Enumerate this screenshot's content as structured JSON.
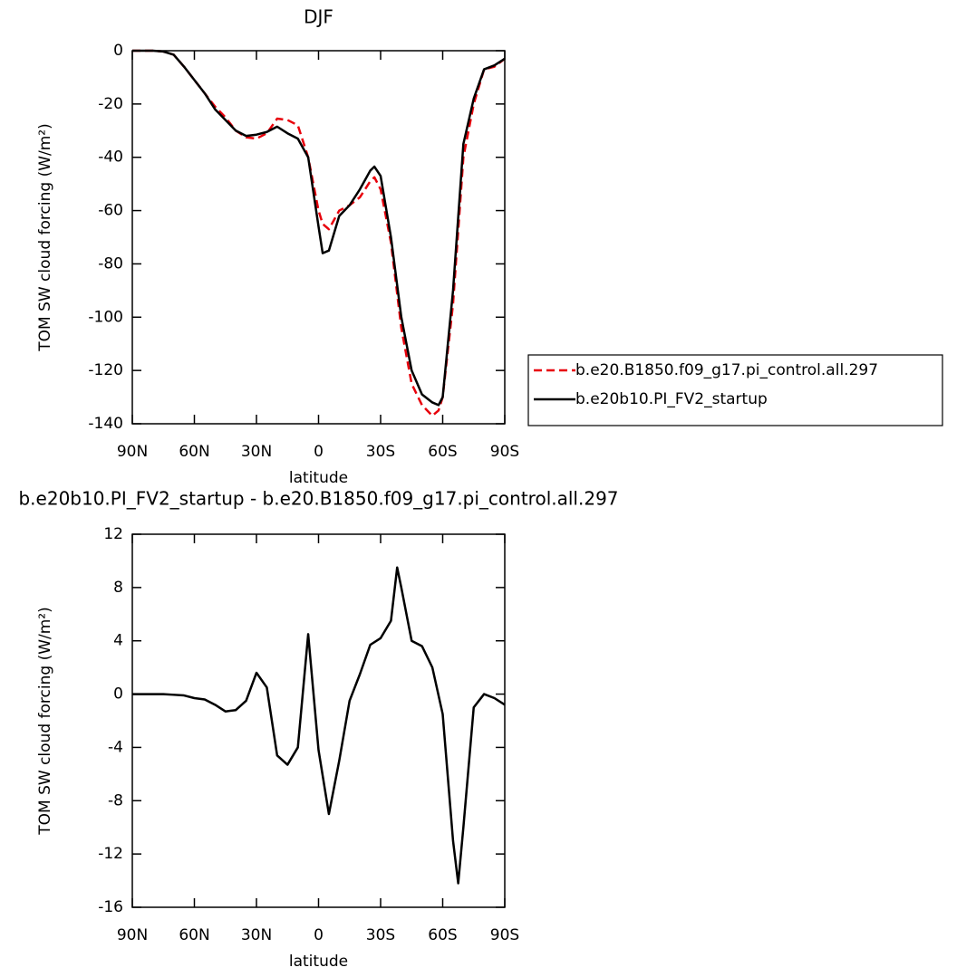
{
  "chart_data": [
    {
      "type": "line",
      "title": "DJF",
      "xlabel": "latitude",
      "ylabel": "TOM SW cloud forcing (W/m²)",
      "x": [
        90,
        85,
        80,
        75,
        70,
        65,
        60,
        55,
        50,
        45,
        40,
        35,
        30,
        25,
        20,
        15,
        10,
        5,
        0,
        -2,
        -5,
        -10,
        -15,
        -20,
        -25,
        -27,
        -30,
        -35,
        -40,
        -45,
        -50,
        -55,
        -58,
        -60,
        -65,
        -70,
        -75,
        -80,
        -85,
        -90
      ],
      "series": [
        {
          "name": "b.e20.B1850.f09_g17.pi_control.all.297",
          "color": "#e8000b",
          "dashed": true,
          "values": [
            0,
            0,
            0,
            -0.3,
            -1.5,
            -6,
            -11,
            -16,
            -21,
            -25,
            -30,
            -32.5,
            -33,
            -31,
            -25.5,
            -26,
            -28,
            -40,
            -60,
            -65,
            -67,
            -60,
            -58,
            -55,
            -49,
            -47.5,
            -52,
            -72,
            -104,
            -125,
            -133,
            -137,
            -135,
            -130,
            -95,
            -40,
            -20,
            -7,
            -6,
            -3
          ]
        },
        {
          "name": "b.e20b10.PI_FV2_startup",
          "color": "#000000",
          "dashed": false,
          "values": [
            0,
            0,
            0,
            -0.3,
            -1.5,
            -6,
            -11,
            -16,
            -22,
            -26,
            -30,
            -32,
            -31.5,
            -30.5,
            -28.5,
            -31,
            -33,
            -40,
            -66,
            -76,
            -75,
            -62,
            -58,
            -52,
            -45,
            -43.5,
            -47,
            -70,
            -100,
            -120,
            -129,
            -132,
            -133,
            -130,
            -90,
            -35,
            -18,
            -7,
            -5.5,
            -3
          ]
        }
      ],
      "xlim": [
        90,
        -90
      ],
      "xticks": [
        {
          "value": 90,
          "label": "90N"
        },
        {
          "value": 60,
          "label": "60N"
        },
        {
          "value": 30,
          "label": "30N"
        },
        0,
        {
          "value": -30,
          "label": "30S"
        },
        {
          "value": -60,
          "label": "60S"
        },
        {
          "value": -90,
          "label": "90S"
        }
      ],
      "ylim": [
        -140,
        0
      ],
      "yticks": [
        0,
        -20,
        -40,
        -60,
        -80,
        -100,
        -120,
        -140
      ],
      "legend": "right"
    },
    {
      "type": "line",
      "title": "b.e20b10.PI_FV2_startup - b.e20.B1850.f09_g17.pi_control.all.297",
      "xlabel": "latitude",
      "ylabel": "TOM SW cloud forcing (W/m²)",
      "x": [
        90,
        85,
        80,
        75,
        70,
        65,
        60,
        55,
        50,
        45,
        40,
        35,
        30,
        25,
        20,
        15,
        10,
        5,
        0,
        -5,
        -10,
        -15,
        -20,
        -25,
        -30,
        -35,
        -38,
        -40,
        -45,
        -50,
        -55,
        -60,
        -65,
        -67.5,
        -70,
        -75,
        -80,
        -85,
        -90
      ],
      "values": [
        0,
        0,
        0,
        0,
        -0.05,
        -0.1,
        -0.3,
        -0.4,
        -0.8,
        -1.3,
        -1.2,
        -0.5,
        1.6,
        0.5,
        -4.6,
        -5.3,
        -4,
        4.5,
        -4.2,
        -9,
        -5,
        -0.5,
        1.5,
        3.7,
        4.2,
        5.5,
        9.5,
        8,
        4,
        3.6,
        2,
        -1.5,
        -11,
        -14.2,
        -10,
        -1,
        0,
        -0.3,
        -0.8
      ],
      "color": "#000000",
      "xlim": [
        90,
        -90
      ],
      "xticks": [
        {
          "value": 90,
          "label": "90N"
        },
        {
          "value": 60,
          "label": "60N"
        },
        {
          "value": 30,
          "label": "30N"
        },
        0,
        {
          "value": -30,
          "label": "30S"
        },
        {
          "value": -60,
          "label": "60S"
        },
        {
          "value": -90,
          "label": "90S"
        }
      ],
      "ylim": [
        -16,
        12
      ],
      "yticks": [
        12,
        8,
        4,
        0,
        -4,
        -8,
        -12,
        -16
      ]
    }
  ]
}
